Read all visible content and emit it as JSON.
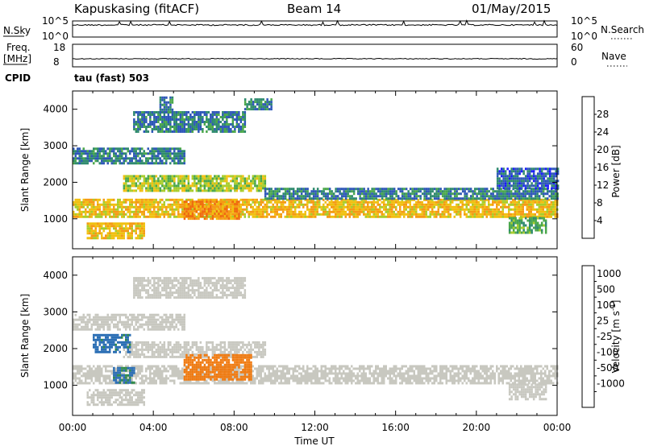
{
  "header": {
    "site": "Kapuskasing (fitACF)",
    "beam": "Beam 14",
    "date": "01/May/2015"
  },
  "noise_panel": {
    "left_label": "N.Sky",
    "left_ticks": [
      "10^5",
      "10^0"
    ],
    "right_label": "N.Search",
    "right_ticks": [
      "10^5",
      "10^0"
    ]
  },
  "freq_panel": {
    "left_label_1": "Freq.",
    "left_label_2": "[MHz]",
    "left_ticks": [
      "18",
      "8"
    ],
    "right_label": "Nave",
    "right_ticks": [
      "60",
      "0"
    ]
  },
  "cpid": {
    "label": "CPID",
    "value": "tau (fast) 503"
  },
  "colors": {
    "power_scale": [
      "#1a1aff",
      "#2e57b8",
      "#2f8a6e",
      "#4aa74a",
      "#a8cd2a",
      "#f0c010",
      "#f59a14",
      "#f06a10",
      "#e02010"
    ],
    "velocity_scale": [
      "#1a3aa0",
      "#2c6fb5",
      "#2f8a4a",
      "#5fc040",
      "#c8c8c0",
      "#f0b020",
      "#f07a10",
      "#e85010",
      "#e01010"
    ]
  },
  "chart_data": [
    {
      "type": "heatmap",
      "panel": "power",
      "xlabel": "Time UT",
      "ylabel": "Slant Range [km]",
      "x_ticks": [
        "00:00",
        "04:00",
        "08:00",
        "12:00",
        "16:00",
        "20:00",
        "00:00"
      ],
      "x_range_hours": [
        0,
        24
      ],
      "y_ticks": [
        1000,
        2000,
        3000,
        4000
      ],
      "y_range_km": [
        180,
        4500
      ],
      "colorbar": {
        "label": "Power [dB]",
        "ticks": [
          4,
          8,
          12,
          16,
          20,
          24,
          28
        ],
        "range": [
          0,
          32
        ]
      },
      "regions": [
        {
          "t0": 0.0,
          "t1": 24.0,
          "r0": 1050,
          "r1": 1550,
          "value": 20
        },
        {
          "t0": 0.0,
          "t1": 5.5,
          "r0": 2550,
          "r1": 2950,
          "value": 8
        },
        {
          "t0": 3.0,
          "t1": 8.5,
          "r0": 3400,
          "r1": 3950,
          "value": 8
        },
        {
          "t0": 4.3,
          "t1": 4.9,
          "r0": 3950,
          "r1": 4350,
          "value": 8
        },
        {
          "t0": 8.5,
          "t1": 9.8,
          "r0": 4000,
          "r1": 4300,
          "value": 8
        },
        {
          "t0": 2.5,
          "t1": 9.5,
          "r0": 1800,
          "r1": 2200,
          "value": 16
        },
        {
          "t0": 0.7,
          "t1": 3.5,
          "r0": 500,
          "r1": 900,
          "value": 20
        },
        {
          "t0": 5.5,
          "t1": 8.2,
          "r0": 1000,
          "r1": 1500,
          "value": 24
        },
        {
          "t0": 9.5,
          "t1": 24.0,
          "r0": 1550,
          "r1": 1850,
          "value": 8
        },
        {
          "t0": 21.6,
          "t1": 23.4,
          "r0": 600,
          "r1": 1050,
          "value": 12
        },
        {
          "t0": 21.0,
          "t1": 24.0,
          "r0": 1850,
          "r1": 2400,
          "value": 6
        }
      ]
    },
    {
      "type": "heatmap",
      "panel": "velocity",
      "xlabel": "Time UT",
      "ylabel": "Slant Range [km]",
      "x_ticks": [
        "00:00",
        "04:00",
        "08:00",
        "12:00",
        "16:00",
        "20:00",
        "00:00"
      ],
      "x_range_hours": [
        0,
        24
      ],
      "y_ticks": [
        1000,
        2000,
        3000,
        4000
      ],
      "y_range_km": [
        180,
        4500
      ],
      "colorbar": {
        "label": "Velocity [m s",
        "label_sup": "-1",
        "label_end": "]",
        "ticks": [
          "1000",
          "500",
          "100",
          "25",
          "-25",
          "-100",
          "-500",
          "-1000"
        ]
      },
      "regions": [
        {
          "t0": 0.0,
          "t1": 24.0,
          "r0": 1050,
          "r1": 1550,
          "value": 0
        },
        {
          "t0": 2.5,
          "t1": 9.5,
          "r0": 1800,
          "r1": 2200,
          "value": 0
        },
        {
          "t0": 3.0,
          "t1": 8.5,
          "r0": 3400,
          "r1": 3950,
          "value": 0
        },
        {
          "t0": 0.0,
          "t1": 5.5,
          "r0": 2550,
          "r1": 2950,
          "value": 0
        },
        {
          "t0": 0.7,
          "t1": 3.5,
          "r0": 500,
          "r1": 900,
          "value": 0
        },
        {
          "t0": 1.0,
          "t1": 2.8,
          "r0": 1900,
          "r1": 2400,
          "value": 150
        },
        {
          "t0": 2.0,
          "t1": 3.0,
          "r0": 1100,
          "r1": 1500,
          "value": 120
        },
        {
          "t0": 5.5,
          "t1": 8.8,
          "r0": 1150,
          "r1": 1850,
          "value": -300
        },
        {
          "t0": 21.6,
          "t1": 23.4,
          "r0": 600,
          "r1": 1050,
          "value": 0
        }
      ]
    }
  ]
}
